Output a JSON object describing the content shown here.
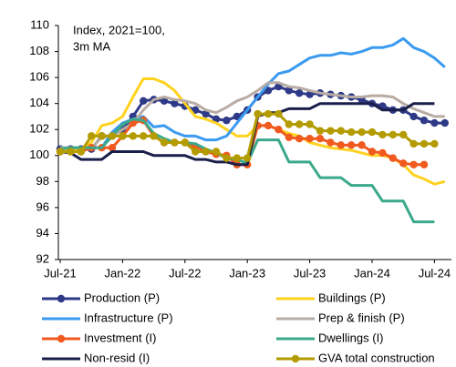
{
  "chart_data": {
    "type": "line",
    "annotation": [
      "Index, 2021=100,",
      "3m MA"
    ],
    "categories": [
      "Jul-21",
      null,
      null,
      null,
      null,
      null,
      "Jan-22",
      null,
      null,
      null,
      null,
      null,
      "Jul-22",
      null,
      null,
      null,
      null,
      null,
      "Jan-23",
      null,
      null,
      null,
      null,
      null,
      "Jul-23",
      null,
      null,
      null,
      null,
      null,
      "Jan-24",
      null,
      null,
      null,
      null,
      null,
      "Jul-24",
      null
    ],
    "ylim": [
      92,
      110
    ],
    "yticks": [
      92,
      94,
      96,
      98,
      100,
      102,
      104,
      106,
      108,
      110
    ],
    "grid": false,
    "legend": "bottom",
    "series": [
      {
        "name": "Production (P)",
        "color": "#2e3a87",
        "markers": true,
        "values": [
          100.5,
          100.5,
          100.5,
          100.5,
          101.5,
          101.5,
          102,
          103,
          104.2,
          104.3,
          104.2,
          104,
          103.8,
          103.5,
          103.2,
          102.8,
          102.7,
          103,
          103.5,
          104.5,
          105,
          105.3,
          105,
          104.8,
          104.7,
          104.8,
          104.7,
          104.6,
          104.5,
          104.3,
          104,
          103.8,
          103.5,
          103.5,
          103,
          102.7,
          102.5,
          102.5
        ]
      },
      {
        "name": "Buildings (P)",
        "color": "#ffd21f",
        "markers": false,
        "values": [
          100.5,
          100.5,
          100.5,
          101,
          102.3,
          102.5,
          103,
          104.5,
          105.9,
          105.9,
          105.6,
          105,
          104,
          103,
          102.8,
          102.5,
          102,
          101.5,
          101.5,
          102.3,
          102.3,
          102,
          101.7,
          101.5,
          101,
          100.8,
          100.6,
          100.5,
          100.4,
          100.2,
          100,
          100,
          99.8,
          99.3,
          98.5,
          98.2,
          97.8,
          98
        ]
      },
      {
        "name": "Infrastructure (P)",
        "color": "#3a9af0",
        "markers": false,
        "values": [
          100.6,
          100.6,
          100.6,
          100.6,
          100.6,
          101.8,
          102.5,
          102.8,
          103,
          102.2,
          102.3,
          101.8,
          101.5,
          101.5,
          101.2,
          101.2,
          101.5,
          102.5,
          103.5,
          104.5,
          105.5,
          106.3,
          106.5,
          107,
          107.5,
          107.7,
          107.7,
          107.9,
          107.8,
          108,
          108.3,
          108.3,
          108.5,
          109,
          108.3,
          108,
          107.5,
          106.8
        ]
      },
      {
        "name": "Prep & finish (P)",
        "color": "#b8aca4",
        "markers": false,
        "values": [
          100.6,
          100.6,
          100.6,
          100.6,
          101.4,
          101.5,
          102,
          102.5,
          103.5,
          104.3,
          104.5,
          104.3,
          104.2,
          104,
          103.5,
          103.3,
          103.7,
          104.2,
          104.5,
          105,
          105.6,
          105.6,
          105.3,
          105.2,
          105,
          104.8,
          104.7,
          104.6,
          104.5,
          104.5,
          104.6,
          104.6,
          104.5,
          104,
          103.6,
          103.3,
          103,
          103
        ]
      },
      {
        "name": "Investment (I)",
        "color": "#f05a1e",
        "markers": true,
        "values": [
          100.3,
          100.3,
          100.3,
          100.6,
          100.6,
          100.6,
          101.5,
          102.5,
          102.7,
          101.5,
          101,
          101,
          101,
          100.7,
          100.3,
          100.1,
          100,
          99.3,
          99.3,
          102.3,
          102.3,
          102,
          101.4,
          101.3,
          101.3,
          101.3,
          101,
          100.8,
          100.8,
          100.8,
          100.3,
          100.2,
          99.8,
          99.4,
          99.3,
          99.3,
          null,
          null
        ]
      },
      {
        "name": "Dwellings (I)",
        "color": "#3aa98a",
        "markers": false,
        "values": [
          100.5,
          100.6,
          100.6,
          100.6,
          100.6,
          101.5,
          102.4,
          102.8,
          102.7,
          101.7,
          101.3,
          101,
          101,
          100.9,
          100.5,
          100.2,
          99.8,
          99.7,
          99.4,
          101.2,
          101.2,
          101.2,
          99.5,
          99.5,
          99.5,
          98.3,
          98.3,
          98.3,
          97.7,
          97.7,
          97.7,
          96.5,
          96.5,
          96.5,
          94.9,
          94.9,
          94.9,
          null
        ]
      },
      {
        "name": "Non-resid (I)",
        "color": "#1a1f4a",
        "markers": false,
        "values": [
          100.3,
          100.2,
          99.7,
          99.7,
          99.7,
          100.3,
          100.3,
          100.3,
          100.3,
          100,
          100,
          100,
          100,
          99.7,
          99.7,
          99.5,
          99.5,
          99.3,
          99.3,
          103,
          103.3,
          103.3,
          103.6,
          103.6,
          103.6,
          104,
          104,
          104,
          104,
          104,
          104,
          103.5,
          103.5,
          103.5,
          104,
          104,
          104,
          null
        ]
      },
      {
        "name": "GVA total construction",
        "color": "#b39b00",
        "markers": true,
        "values": [
          100.3,
          100.3,
          100.3,
          101.5,
          101.5,
          101.5,
          101.5,
          101.5,
          101.5,
          101.5,
          101,
          101,
          101,
          100.3,
          100.3,
          100.3,
          99.8,
          99.8,
          99.8,
          103.2,
          103.2,
          103.2,
          102.4,
          102.4,
          102.4,
          101.9,
          101.9,
          101.9,
          101.8,
          101.8,
          101.8,
          101.6,
          101.6,
          101.6,
          100.9,
          100.9,
          100.9,
          null
        ]
      }
    ]
  }
}
